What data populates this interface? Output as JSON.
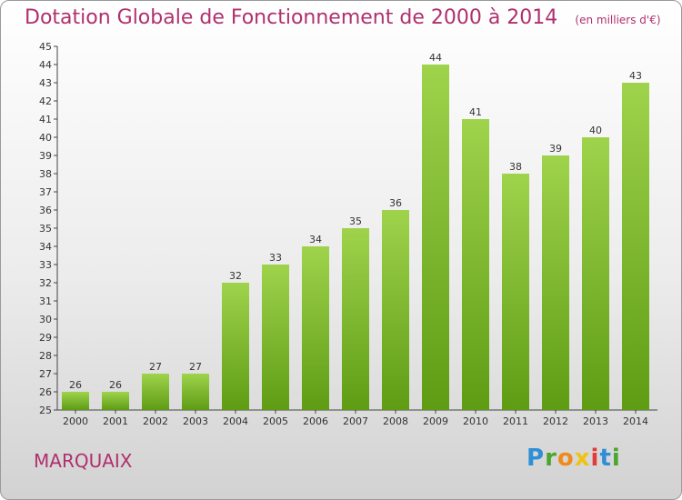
{
  "header": {
    "title": "Dotation Globale de Fonctionnement de 2000 à 2014",
    "unit": "(en milliers d'€)"
  },
  "footer": {
    "commune": "MARQUAIX",
    "logo_text": "Proxiti"
  },
  "colors": {
    "title": "#b0306e",
    "bar_light": "#9fd34c",
    "bar_dark": "#5e9c14",
    "axis": "#444444"
  },
  "chart_data": {
    "type": "bar",
    "title": "Dotation Globale de Fonctionnement de 2000 à 2014",
    "subtitle": "(en milliers d'€)",
    "xlabel": "",
    "ylabel": "",
    "categories": [
      "2000",
      "2001",
      "2002",
      "2003",
      "2004",
      "2005",
      "2006",
      "2007",
      "2008",
      "2009",
      "2010",
      "2011",
      "2012",
      "2013",
      "2014"
    ],
    "values": [
      26,
      26,
      27,
      27,
      32,
      33,
      34,
      35,
      36,
      44,
      41,
      38,
      39,
      40,
      43
    ],
    "ylim": [
      25,
      45
    ],
    "yticks": [
      25,
      26,
      27,
      28,
      29,
      30,
      31,
      32,
      33,
      34,
      35,
      36,
      37,
      38,
      39,
      40,
      41,
      42,
      43,
      44,
      45
    ],
    "grid": false,
    "data_labels": true
  }
}
